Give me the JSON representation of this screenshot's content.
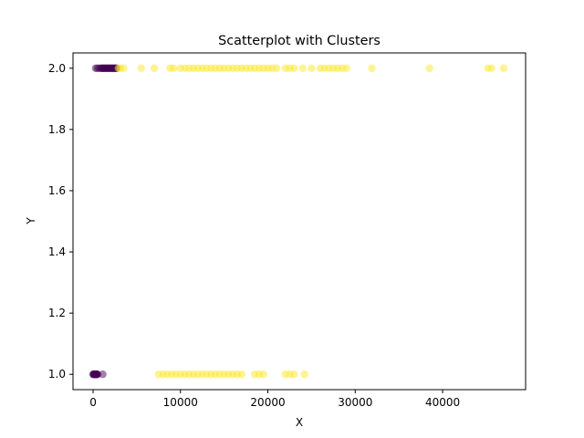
{
  "chart_data": {
    "type": "scatter",
    "title": "Scatterplot with Clusters",
    "xlabel": "X",
    "ylabel": "Y",
    "xlim": [
      -2300,
      49500
    ],
    "ylim": [
      0.95,
      2.05
    ],
    "xticks": [
      0,
      10000,
      20000,
      30000,
      40000
    ],
    "xtick_labels": [
      "0",
      "10000",
      "20000",
      "30000",
      "40000"
    ],
    "yticks": [
      1.0,
      1.2,
      1.4,
      1.6,
      1.8,
      2.0
    ],
    "ytick_labels": [
      "1.0",
      "1.2",
      "1.4",
      "1.6",
      "1.8",
      "2.0"
    ],
    "grid": false,
    "marker_alpha": 0.5,
    "series": [
      {
        "color": "#440154",
        "points": [
          [
            0,
            1
          ],
          [
            50,
            1
          ],
          [
            100,
            1
          ],
          [
            150,
            1
          ],
          [
            200,
            1
          ],
          [
            250,
            1
          ],
          [
            300,
            1
          ],
          [
            350,
            1
          ],
          [
            400,
            1
          ],
          [
            450,
            1
          ],
          [
            500,
            1
          ],
          [
            1100,
            1
          ],
          [
            300,
            2
          ],
          [
            500,
            2
          ],
          [
            700,
            2
          ],
          [
            900,
            2
          ],
          [
            1000,
            2
          ],
          [
            1100,
            2
          ],
          [
            1200,
            2
          ],
          [
            1300,
            2
          ],
          [
            1400,
            2
          ],
          [
            1500,
            2
          ],
          [
            1600,
            2
          ],
          [
            1700,
            2
          ],
          [
            1800,
            2
          ],
          [
            1900,
            2
          ],
          [
            2000,
            2
          ],
          [
            2100,
            2
          ],
          [
            2200,
            2
          ],
          [
            2300,
            2
          ],
          [
            2400,
            2
          ],
          [
            2500,
            2
          ],
          [
            2600,
            2
          ],
          [
            2700,
            2
          ]
        ]
      },
      {
        "color": "#fde725",
        "points": [
          [
            2900,
            2
          ],
          [
            3100,
            2
          ],
          [
            3500,
            2
          ],
          [
            5500,
            2
          ],
          [
            7000,
            2
          ],
          [
            8800,
            2
          ],
          [
            9200,
            2
          ],
          [
            10000,
            2
          ],
          [
            10500,
            2
          ],
          [
            11000,
            2
          ],
          [
            11500,
            2
          ],
          [
            12000,
            2
          ],
          [
            12500,
            2
          ],
          [
            13000,
            2
          ],
          [
            13500,
            2
          ],
          [
            14000,
            2
          ],
          [
            14500,
            2
          ],
          [
            15000,
            2
          ],
          [
            15500,
            2
          ],
          [
            16000,
            2
          ],
          [
            16500,
            2
          ],
          [
            17000,
            2
          ],
          [
            17500,
            2
          ],
          [
            18000,
            2
          ],
          [
            18500,
            2
          ],
          [
            19000,
            2
          ],
          [
            19500,
            2
          ],
          [
            20000,
            2
          ],
          [
            20500,
            2
          ],
          [
            21000,
            2
          ],
          [
            22000,
            2
          ],
          [
            22500,
            2
          ],
          [
            23000,
            2
          ],
          [
            24000,
            2
          ],
          [
            25000,
            2
          ],
          [
            26000,
            2
          ],
          [
            26500,
            2
          ],
          [
            27000,
            2
          ],
          [
            27500,
            2
          ],
          [
            28000,
            2
          ],
          [
            28500,
            2
          ],
          [
            29000,
            2
          ],
          [
            31900,
            2
          ],
          [
            38500,
            2
          ],
          [
            45200,
            2
          ],
          [
            45600,
            2
          ],
          [
            47000,
            2
          ],
          [
            7500,
            1
          ],
          [
            8000,
            1
          ],
          [
            8500,
            1
          ],
          [
            9000,
            1
          ],
          [
            9500,
            1
          ],
          [
            10000,
            1
          ],
          [
            10500,
            1
          ],
          [
            11000,
            1
          ],
          [
            11500,
            1
          ],
          [
            12000,
            1
          ],
          [
            12500,
            1
          ],
          [
            13000,
            1
          ],
          [
            13500,
            1
          ],
          [
            14000,
            1
          ],
          [
            14500,
            1
          ],
          [
            15000,
            1
          ],
          [
            15500,
            1
          ],
          [
            16000,
            1
          ],
          [
            16500,
            1
          ],
          [
            17000,
            1
          ],
          [
            18500,
            1
          ],
          [
            19000,
            1
          ],
          [
            19500,
            1
          ],
          [
            22000,
            1
          ],
          [
            22500,
            1
          ],
          [
            23000,
            1
          ],
          [
            24200,
            1
          ]
        ]
      }
    ]
  }
}
